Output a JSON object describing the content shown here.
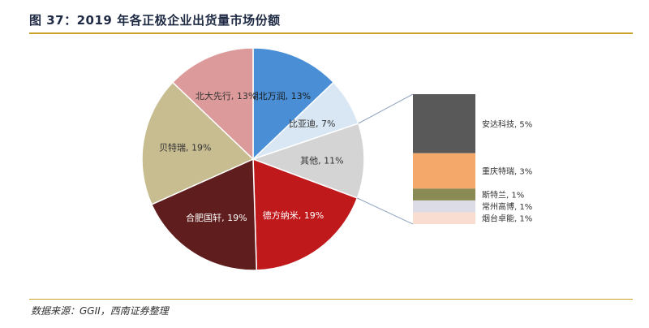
{
  "figure": {
    "title": "图 37：2019 年各正极企业出货量市场份额",
    "source": "数据来源：GGII，西南证券整理"
  },
  "chart_data": [
    {
      "type": "pie",
      "slices": [
        {
          "label": "湖北万润, 13%",
          "value": 13,
          "color": "#4a8fd6",
          "text_color": "#1a1a1a"
        },
        {
          "label": "比亚迪, 7%",
          "value": 7,
          "color": "#d9e7f5",
          "text_color": "#333333"
        },
        {
          "label": "其他, 11%",
          "value": 11,
          "color": "#d4d4d4",
          "text_color": "#333333"
        },
        {
          "label": "德方纳米, 19%",
          "value": 19,
          "color": "#c0191c",
          "text_color": "#ffffff"
        },
        {
          "label": "合肥国轩, 19%",
          "value": 19,
          "color": "#5f1d1d",
          "text_color": "#ffffff"
        },
        {
          "label": "贝特瑞, 19%",
          "value": 19,
          "color": "#c8bd91",
          "text_color": "#333333"
        },
        {
          "label": "北大先行, 13%",
          "value": 13,
          "color": "#dc9a9a",
          "text_color": "#333333"
        }
      ]
    },
    {
      "type": "bar",
      "stacked": true,
      "series": [
        {
          "label": "安达科技, 5%",
          "value": 5,
          "color": "#595959"
        },
        {
          "label": "重庆特瑞, 3%",
          "value": 3,
          "color": "#f4a96a"
        },
        {
          "label": "斯特兰, 1%",
          "value": 1,
          "color": "#8a8a55"
        },
        {
          "label": "常州高博, 1%",
          "value": 1,
          "color": "#dcdce6"
        },
        {
          "label": "烟台卓能, 1%",
          "value": 1,
          "color": "#f8ddd0"
        }
      ]
    }
  ]
}
